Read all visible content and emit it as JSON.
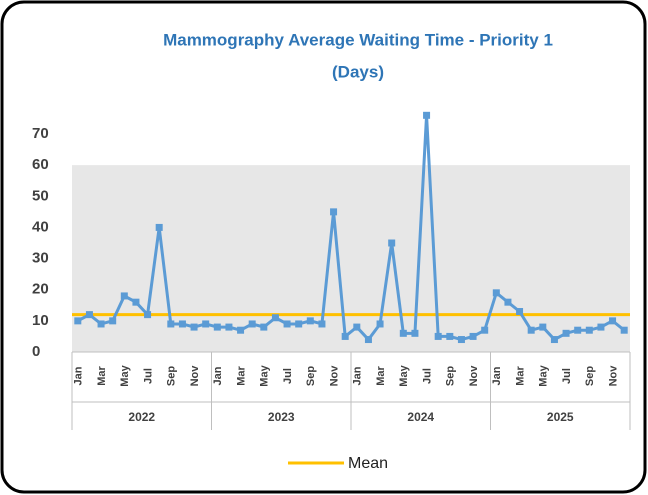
{
  "chart_data": {
    "type": "line",
    "title": [
      "Mammography Average Waiting Time - Priority 1",
      "(Days)"
    ],
    "categories": [
      "Jan",
      null,
      "Mar",
      null,
      "May",
      null,
      "Jul",
      null,
      "Sep",
      null,
      "Nov",
      null,
      "Jan",
      null,
      "Mar",
      null,
      "May",
      null,
      "Jul",
      null,
      "Sep",
      null,
      "Nov",
      null,
      "Jan",
      null,
      "Mar",
      null,
      "May",
      null,
      "Jul",
      null,
      "Sep",
      null,
      "Nov",
      null,
      "Jan",
      null,
      "Mar",
      null,
      "May",
      null,
      "Jul",
      null,
      "Sep",
      null,
      "Nov",
      null
    ],
    "groups": [
      "2022",
      "2023",
      "2024",
      "2025"
    ],
    "series": [
      {
        "color": "#5b9bd5",
        "values": [
          10,
          12,
          9,
          10,
          18,
          16,
          12,
          40,
          9,
          9,
          8,
          9,
          8,
          8,
          7,
          9,
          8,
          11,
          9,
          9,
          10,
          9,
          45,
          5,
          8,
          4,
          9,
          35,
          6,
          6,
          76,
          5,
          5,
          4,
          5,
          7,
          19,
          16,
          13,
          7,
          8,
          4,
          6,
          7,
          7,
          8,
          10,
          7
        ]
      }
    ],
    "mean": {
      "name": "Mean",
      "value": 12,
      "color": "#ffc000"
    },
    "shaded_range": [
      0,
      60
    ],
    "shade_color": "#e7e7e7",
    "ylim": [
      0,
      70
    ],
    "yticks": [
      0,
      10,
      20,
      30,
      40,
      50,
      60,
      70
    ]
  }
}
